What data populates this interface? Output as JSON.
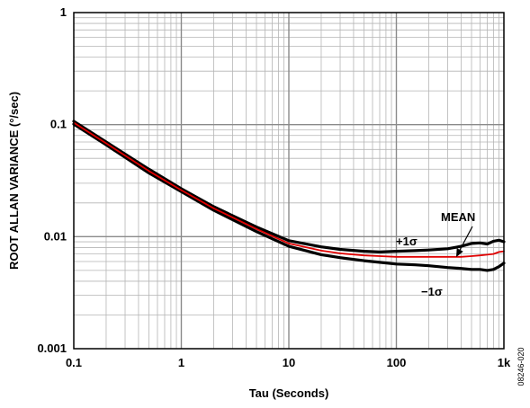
{
  "chart_data": {
    "type": "line",
    "title": "",
    "xlabel": "Tau (Seconds)",
    "ylabel": "ROOT ALLAN VARIANCE (°/sec)",
    "x_scale": "log",
    "y_scale": "log",
    "xlim": [
      0.1,
      1000
    ],
    "ylim": [
      0.001,
      1
    ],
    "grid": true,
    "x_ticks": [
      {
        "value": 0.1,
        "label": "0.1"
      },
      {
        "value": 1,
        "label": "1"
      },
      {
        "value": 10,
        "label": "10"
      },
      {
        "value": 100,
        "label": "100"
      },
      {
        "value": 1000,
        "label": "1k"
      }
    ],
    "y_ticks": [
      {
        "value": 0.001,
        "label": "0.001"
      },
      {
        "value": 0.01,
        "label": "0.01"
      },
      {
        "value": 0.1,
        "label": "0.1"
      },
      {
        "value": 1,
        "label": "1"
      }
    ],
    "series": [
      {
        "name": "+1σ",
        "color": "#000000",
        "x": [
          0.1,
          0.2,
          0.5,
          1,
          2,
          5,
          10,
          20,
          30,
          50,
          70,
          100,
          150,
          200,
          300,
          400,
          500,
          600,
          700,
          800,
          900,
          1000
        ],
        "y": [
          0.107,
          0.07,
          0.04,
          0.0268,
          0.0185,
          0.0122,
          0.0092,
          0.0081,
          0.0077,
          0.0074,
          0.0073,
          0.0074,
          0.0075,
          0.0076,
          0.0078,
          0.0082,
          0.0087,
          0.0088,
          0.0086,
          0.0091,
          0.0093,
          0.009
        ]
      },
      {
        "name": "MEAN",
        "color": "#e00000",
        "x": [
          0.1,
          0.2,
          0.5,
          1,
          2,
          5,
          10,
          20,
          30,
          50,
          70,
          100,
          150,
          200,
          300,
          400,
          500,
          600,
          700,
          800,
          900,
          1000
        ],
        "y": [
          0.104,
          0.068,
          0.0385,
          0.026,
          0.0179,
          0.0117,
          0.0087,
          0.0075,
          0.0071,
          0.0068,
          0.0067,
          0.0066,
          0.0066,
          0.0066,
          0.0066,
          0.0066,
          0.0067,
          0.0068,
          0.0069,
          0.007,
          0.0073,
          0.0074
        ]
      },
      {
        "name": "−1σ",
        "color": "#000000",
        "x": [
          0.1,
          0.2,
          0.5,
          1,
          2,
          5,
          10,
          20,
          30,
          50,
          70,
          100,
          150,
          200,
          300,
          400,
          500,
          600,
          700,
          800,
          900,
          1000
        ],
        "y": [
          0.101,
          0.066,
          0.037,
          0.0252,
          0.0172,
          0.0111,
          0.0082,
          0.0069,
          0.0065,
          0.0061,
          0.0059,
          0.0057,
          0.0056,
          0.0055,
          0.0053,
          0.0052,
          0.0051,
          0.0051,
          0.005,
          0.0051,
          0.0054,
          0.0058
        ]
      }
    ],
    "annotations": [
      {
        "text": "MEAN"
      },
      {
        "text": "+1σ"
      },
      {
        "text": "−1σ"
      }
    ]
  },
  "figure_id": "08246-020"
}
